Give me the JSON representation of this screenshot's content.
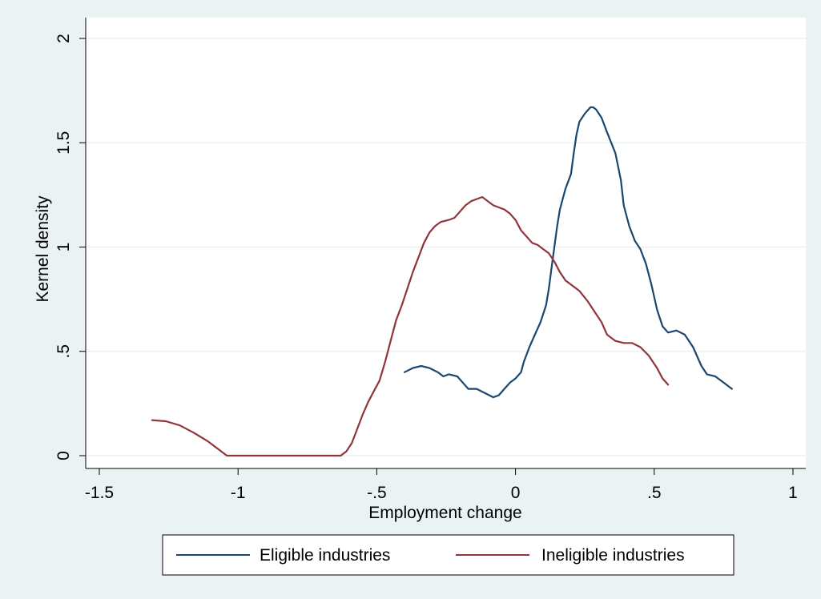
{
  "chart_data": {
    "type": "line",
    "title": "",
    "xlabel": "Employment change",
    "ylabel": "Kernel density",
    "xlim": [
      -1.5,
      1
    ],
    "ylim": [
      0,
      2
    ],
    "x_ticks": [
      -1.5,
      -1,
      -0.5,
      0,
      0.5,
      1
    ],
    "x_tick_labels": [
      "-1.5",
      "-1",
      "-.5",
      "0",
      ".5",
      "1"
    ],
    "y_ticks": [
      0,
      0.5,
      1,
      1.5,
      2
    ],
    "y_tick_labels": [
      "0",
      ".5",
      "1",
      "1.5",
      "2"
    ],
    "grid": "horizontal",
    "legend_position": "bottom",
    "colors": {
      "background": "#eaf2f3",
      "plot_background": "#ffffff",
      "grid": "#eaf2f3",
      "eligible": "#1a476f",
      "ineligible": "#90353b"
    },
    "series": [
      {
        "name": "Eligible industries",
        "color": "#1a476f",
        "points": [
          [
            -0.4,
            0.4
          ],
          [
            -0.37,
            0.42
          ],
          [
            -0.34,
            0.43
          ],
          [
            -0.31,
            0.42
          ],
          [
            -0.28,
            0.4
          ],
          [
            -0.26,
            0.38
          ],
          [
            -0.24,
            0.39
          ],
          [
            -0.21,
            0.38
          ],
          [
            -0.19,
            0.35
          ],
          [
            -0.17,
            0.32
          ],
          [
            -0.14,
            0.32
          ],
          [
            -0.11,
            0.3
          ],
          [
            -0.08,
            0.28
          ],
          [
            -0.06,
            0.29
          ],
          [
            -0.04,
            0.32
          ],
          [
            -0.02,
            0.35
          ],
          [
            0.0,
            0.37
          ],
          [
            0.02,
            0.4
          ],
          [
            0.03,
            0.45
          ],
          [
            0.05,
            0.52
          ],
          [
            0.07,
            0.58
          ],
          [
            0.09,
            0.64
          ],
          [
            0.11,
            0.72
          ],
          [
            0.12,
            0.8
          ],
          [
            0.13,
            0.9
          ],
          [
            0.14,
            1.0
          ],
          [
            0.15,
            1.1
          ],
          [
            0.16,
            1.18
          ],
          [
            0.18,
            1.28
          ],
          [
            0.2,
            1.35
          ],
          [
            0.21,
            1.45
          ],
          [
            0.22,
            1.54
          ],
          [
            0.23,
            1.6
          ],
          [
            0.25,
            1.64
          ],
          [
            0.27,
            1.67
          ],
          [
            0.28,
            1.67
          ],
          [
            0.29,
            1.66
          ],
          [
            0.31,
            1.62
          ],
          [
            0.33,
            1.55
          ],
          [
            0.36,
            1.45
          ],
          [
            0.38,
            1.32
          ],
          [
            0.39,
            1.2
          ],
          [
            0.41,
            1.1
          ],
          [
            0.43,
            1.03
          ],
          [
            0.45,
            0.99
          ],
          [
            0.47,
            0.92
          ],
          [
            0.49,
            0.82
          ],
          [
            0.51,
            0.7
          ],
          [
            0.53,
            0.62
          ],
          [
            0.55,
            0.59
          ],
          [
            0.58,
            0.6
          ],
          [
            0.61,
            0.58
          ],
          [
            0.64,
            0.52
          ],
          [
            0.67,
            0.43
          ],
          [
            0.69,
            0.39
          ],
          [
            0.72,
            0.38
          ],
          [
            0.75,
            0.35
          ],
          [
            0.78,
            0.32
          ]
        ]
      },
      {
        "name": "Ineligible industries",
        "color": "#90353b",
        "points": [
          [
            -1.31,
            0.17
          ],
          [
            -1.26,
            0.165
          ],
          [
            -1.21,
            0.145
          ],
          [
            -1.16,
            0.11
          ],
          [
            -1.11,
            0.07
          ],
          [
            -1.07,
            0.03
          ],
          [
            -1.04,
            0.0
          ],
          [
            -0.95,
            0.0
          ],
          [
            -0.85,
            0.0
          ],
          [
            -0.75,
            0.0
          ],
          [
            -0.65,
            0.0
          ],
          [
            -0.63,
            0.0
          ],
          [
            -0.61,
            0.02
          ],
          [
            -0.59,
            0.06
          ],
          [
            -0.57,
            0.13
          ],
          [
            -0.55,
            0.2
          ],
          [
            -0.53,
            0.26
          ],
          [
            -0.51,
            0.31
          ],
          [
            -0.49,
            0.36
          ],
          [
            -0.47,
            0.45
          ],
          [
            -0.45,
            0.55
          ],
          [
            -0.43,
            0.65
          ],
          [
            -0.41,
            0.72
          ],
          [
            -0.39,
            0.8
          ],
          [
            -0.37,
            0.88
          ],
          [
            -0.35,
            0.95
          ],
          [
            -0.33,
            1.02
          ],
          [
            -0.31,
            1.07
          ],
          [
            -0.29,
            1.1
          ],
          [
            -0.27,
            1.12
          ],
          [
            -0.24,
            1.13
          ],
          [
            -0.22,
            1.14
          ],
          [
            -0.2,
            1.17
          ],
          [
            -0.18,
            1.2
          ],
          [
            -0.16,
            1.22
          ],
          [
            -0.14,
            1.23
          ],
          [
            -0.12,
            1.24
          ],
          [
            -0.1,
            1.22
          ],
          [
            -0.08,
            1.2
          ],
          [
            -0.06,
            1.19
          ],
          [
            -0.04,
            1.18
          ],
          [
            -0.02,
            1.16
          ],
          [
            0.0,
            1.13
          ],
          [
            0.02,
            1.08
          ],
          [
            0.04,
            1.05
          ],
          [
            0.06,
            1.02
          ],
          [
            0.08,
            1.01
          ],
          [
            0.1,
            0.99
          ],
          [
            0.12,
            0.97
          ],
          [
            0.14,
            0.93
          ],
          [
            0.16,
            0.88
          ],
          [
            0.18,
            0.84
          ],
          [
            0.2,
            0.82
          ],
          [
            0.23,
            0.79
          ],
          [
            0.26,
            0.74
          ],
          [
            0.28,
            0.7
          ],
          [
            0.31,
            0.64
          ],
          [
            0.33,
            0.58
          ],
          [
            0.36,
            0.55
          ],
          [
            0.39,
            0.54
          ],
          [
            0.42,
            0.54
          ],
          [
            0.45,
            0.52
          ],
          [
            0.48,
            0.48
          ],
          [
            0.51,
            0.42
          ],
          [
            0.53,
            0.37
          ],
          [
            0.55,
            0.34
          ]
        ]
      }
    ]
  }
}
